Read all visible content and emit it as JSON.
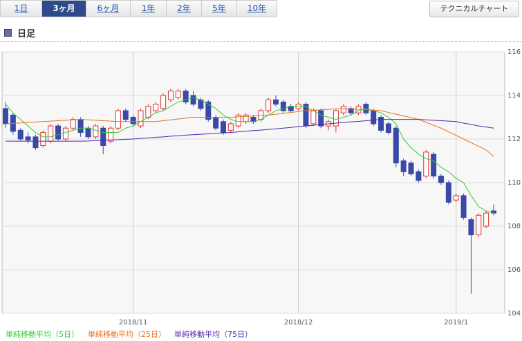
{
  "tabs": [
    "1日",
    "3ヶ月",
    "6ヶ月",
    "1年",
    "2年",
    "5年",
    "10年"
  ],
  "selected_tab": 1,
  "button": "テクニカルチャート",
  "heading": "日足",
  "chart_data": {
    "type": "candlestick",
    "categories": [
      null,
      null,
      null,
      null,
      null,
      null,
      null,
      null,
      null,
      null,
      null,
      null,
      null,
      null,
      null,
      null,
      null,
      "2018/11",
      null,
      null,
      null,
      null,
      null,
      null,
      null,
      null,
      null,
      null,
      null,
      null,
      null,
      null,
      null,
      null,
      null,
      null,
      null,
      null,
      null,
      "2018/12",
      null,
      null,
      null,
      null,
      null,
      null,
      null,
      null,
      null,
      null,
      null,
      null,
      null,
      null,
      null,
      null,
      null,
      null,
      null,
      null,
      "2019/1",
      null,
      null,
      null,
      null,
      null
    ],
    "open": [
      113.4,
      113.1,
      112.4,
      112.1,
      112.1,
      111.7,
      111.9,
      112.6,
      112.0,
      112.5,
      112.9,
      112.5,
      112.1,
      112.5,
      111.9,
      112.5,
      113.3,
      113.0,
      112.6,
      113.0,
      113.3,
      113.4,
      113.8,
      113.9,
      114.2,
      114.0,
      113.8,
      113.7,
      113.0,
      112.8,
      112.4,
      112.6,
      112.8,
      113.0,
      112.9,
      113.3,
      113.8,
      113.7,
      113.5,
      113.4,
      113.6,
      112.7,
      113.3,
      112.6,
      112.6,
      113.2,
      113.4,
      113.2,
      113.6,
      113.3,
      113.0,
      112.7,
      112.5,
      111.0,
      110.9,
      110.5,
      110.3,
      111.3,
      110.3,
      110.0,
      109.2,
      109.4,
      108.3,
      107.6,
      108.0,
      108.7
    ],
    "high": [
      113.7,
      113.2,
      112.5,
      112.3,
      112.2,
      112.4,
      112.7,
      112.7,
      112.6,
      113.0,
      113.0,
      112.6,
      112.7,
      112.6,
      112.6,
      113.4,
      113.4,
      113.1,
      113.4,
      113.6,
      113.7,
      114.1,
      114.3,
      114.3,
      114.3,
      114.2,
      113.9,
      113.8,
      113.1,
      112.9,
      112.8,
      113.2,
      113.2,
      113.1,
      113.4,
      113.9,
      114.0,
      113.8,
      113.6,
      113.7,
      113.7,
      113.4,
      113.4,
      112.9,
      113.4,
      113.6,
      113.5,
      113.6,
      113.7,
      113.4,
      113.1,
      112.8,
      112.6,
      111.1,
      111.0,
      110.6,
      111.5,
      111.4,
      110.4,
      110.1,
      109.5,
      109.5,
      108.4,
      108.6,
      108.7,
      109.0
    ],
    "low": [
      112.5,
      112.2,
      111.9,
      111.8,
      111.5,
      111.6,
      111.8,
      111.9,
      111.9,
      112.4,
      112.1,
      112.0,
      112.0,
      111.3,
      111.8,
      112.4,
      112.8,
      112.6,
      112.5,
      112.9,
      113.2,
      113.3,
      113.7,
      113.8,
      113.6,
      113.5,
      113.3,
      112.8,
      112.4,
      112.2,
      112.3,
      112.5,
      112.7,
      112.7,
      112.8,
      113.2,
      113.5,
      113.2,
      113.2,
      113.3,
      112.5,
      112.6,
      112.5,
      112.4,
      112.3,
      113.1,
      113.1,
      113.1,
      113.1,
      112.6,
      112.3,
      112.2,
      110.7,
      110.3,
      110.3,
      110.0,
      110.2,
      110.2,
      109.9,
      109.0,
      109.1,
      108.3,
      104.9,
      107.5,
      107.9,
      108.5
    ],
    "close": [
      112.7,
      112.35,
      112.0,
      111.95,
      111.6,
      112.3,
      112.6,
      112.0,
      112.5,
      112.9,
      112.3,
      112.1,
      112.6,
      111.7,
      112.5,
      113.3,
      112.9,
      112.7,
      113.3,
      113.5,
      113.6,
      114.0,
      114.2,
      114.2,
      113.7,
      113.6,
      113.4,
      112.9,
      112.5,
      112.3,
      112.7,
      113.1,
      113.1,
      112.8,
      113.3,
      113.8,
      113.6,
      113.3,
      113.3,
      113.6,
      112.6,
      113.3,
      112.6,
      112.8,
      113.3,
      113.5,
      113.2,
      113.5,
      113.2,
      112.7,
      112.4,
      112.3,
      110.9,
      110.5,
      110.4,
      110.1,
      111.4,
      110.3,
      110.0,
      109.1,
      109.4,
      108.4,
      107.6,
      108.5,
      108.6,
      108.6
    ],
    "up_color": "#dd3333",
    "down_color": "#3a48a8",
    "series": [
      {
        "name": "単純移動平均（5日）",
        "color": "#33cc33",
        "values": [
          113.6,
          113.2,
          112.9,
          112.6,
          112.3,
          112.1,
          112.1,
          112.2,
          112.3,
          112.4,
          112.5,
          112.5,
          112.4,
          112.3,
          112.3,
          112.3,
          112.5,
          112.6,
          112.8,
          113.0,
          113.2,
          113.3,
          113.5,
          113.7,
          113.8,
          113.9,
          113.8,
          113.6,
          113.4,
          113.1,
          112.9,
          112.8,
          112.8,
          112.8,
          112.9,
          113.1,
          113.3,
          113.4,
          113.5,
          113.5,
          113.5,
          113.3,
          113.1,
          113.0,
          112.9,
          113.0,
          113.1,
          113.3,
          113.4,
          113.3,
          113.2,
          113.0,
          112.7,
          112.0,
          111.6,
          111.3,
          111.1,
          111.0,
          110.7,
          110.5,
          110.2,
          110.0,
          109.4,
          108.9,
          108.7,
          108.6
        ]
      },
      {
        "name": "単純移動平均（25日）",
        "color": "#e8701a",
        "values": [
          112.7,
          112.72,
          112.74,
          112.76,
          112.78,
          112.8,
          112.82,
          112.84,
          112.86,
          112.88,
          112.9,
          112.88,
          112.86,
          112.84,
          112.82,
          112.8,
          112.8,
          112.8,
          112.8,
          112.8,
          112.8,
          112.84,
          112.88,
          112.92,
          112.96,
          113.0,
          113.0,
          113.0,
          113.0,
          113.0,
          113.0,
          113.02,
          113.04,
          113.06,
          113.08,
          113.1,
          113.14,
          113.18,
          113.22,
          113.26,
          113.3,
          113.32,
          113.34,
          113.36,
          113.38,
          113.4,
          113.38,
          113.36,
          113.34,
          113.32,
          113.3,
          113.22,
          113.14,
          113.06,
          112.98,
          112.9,
          112.77,
          112.63,
          112.5,
          112.33,
          112.17,
          112.0,
          111.83,
          111.67,
          111.5,
          111.2
        ]
      },
      {
        "name": "単純移動平均（75日）",
        "color": "#5522aa",
        "values": [
          111.9,
          111.9,
          111.9,
          111.9,
          111.9,
          111.9,
          111.9,
          111.9,
          111.9,
          111.9,
          111.9,
          111.91,
          111.93,
          111.94,
          111.96,
          111.97,
          111.99,
          112.0,
          112.03,
          112.05,
          112.08,
          112.1,
          112.13,
          112.15,
          112.18,
          112.2,
          112.22,
          112.24,
          112.26,
          112.28,
          112.3,
          112.33,
          112.36,
          112.39,
          112.41,
          112.44,
          112.47,
          112.5,
          112.53,
          112.57,
          112.6,
          112.63,
          112.67,
          112.7,
          112.73,
          112.76,
          112.79,
          112.81,
          112.84,
          112.87,
          112.9,
          112.9,
          112.9,
          112.9,
          112.9,
          112.9,
          112.88,
          112.86,
          112.84,
          112.82,
          112.8,
          112.73,
          112.67,
          112.6,
          112.55,
          112.5
        ]
      }
    ],
    "ylim": [
      104,
      116
    ],
    "yticks": [
      104,
      106,
      108,
      110,
      112,
      114,
      116
    ],
    "grid": true
  }
}
